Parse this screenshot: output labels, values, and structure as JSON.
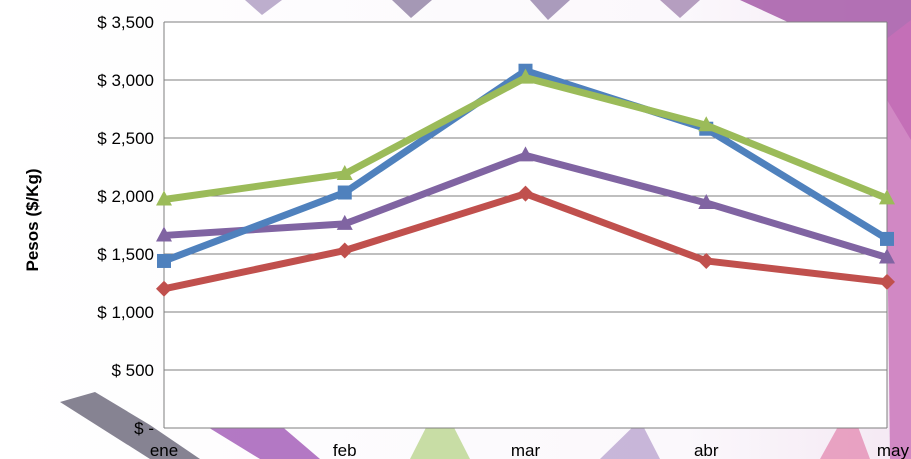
{
  "chart_data": {
    "type": "line",
    "title": "",
    "xlabel": "",
    "ylabel": "Pesos ($/Kg)",
    "categories": [
      "ene",
      "feb",
      "mar",
      "abr",
      "may"
    ],
    "ylim": [
      0,
      3500
    ],
    "yticks": [
      0,
      500,
      1000,
      1500,
      2000,
      2500,
      3000,
      3500
    ],
    "ytick_labels": [
      "$ -",
      "$ 500",
      "$ 1,000",
      "$ 1,500",
      "$ 2,000",
      "$ 2,500",
      "$ 3,000",
      "$ 3,500"
    ],
    "grid": true,
    "legend": "none",
    "series": [
      {
        "values": [
          1440,
          2030,
          3080,
          2580,
          1630
        ],
        "color": "#4F81BD",
        "marker": "square"
      },
      {
        "values": [
          1200,
          1530,
          2020,
          1440,
          1260
        ],
        "color": "#C0504D",
        "marker": "diamond"
      },
      {
        "values": [
          1970,
          2190,
          3020,
          2610,
          1980
        ],
        "color": "#9BBB59",
        "marker": "triangle"
      },
      {
        "values": [
          1660,
          1760,
          2350,
          1940,
          1470
        ],
        "color": "#8064A2",
        "marker": "triangle"
      }
    ]
  }
}
